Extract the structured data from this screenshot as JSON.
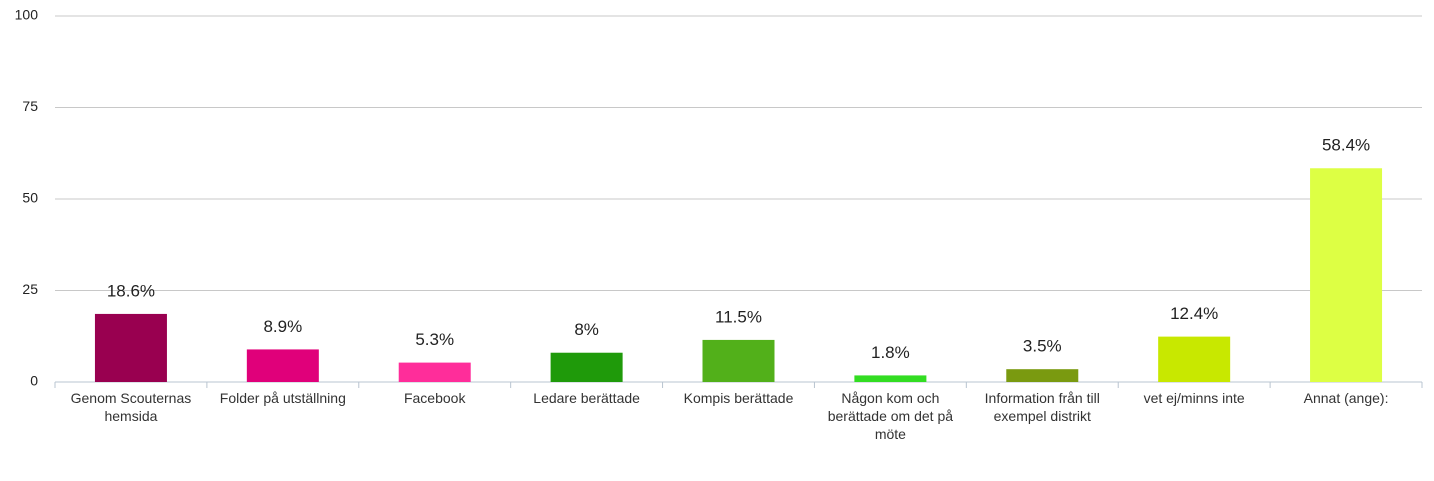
{
  "chart_data": {
    "type": "bar",
    "categories": [
      "Genom Scouternas hemsida",
      "Folder på utställning",
      "Facebook",
      "Ledare berättade",
      "Kompis berättade",
      "Någon kom och berättade om det på möte",
      "Information från till exempel distrikt",
      "vet ej/minns inte",
      "Annat (ange):"
    ],
    "values": [
      18.6,
      8.9,
      5.3,
      8,
      11.5,
      1.8,
      3.5,
      12.4,
      58.4
    ],
    "value_labels": [
      "18.6%",
      "8.9%",
      "5.3%",
      "8%",
      "11.5%",
      "1.8%",
      "3.5%",
      "12.4%",
      "58.4%"
    ],
    "colors": [
      "#990050",
      "#e0007a",
      "#ff2d9a",
      "#1f9a0a",
      "#52b01a",
      "#33dd22",
      "#7a9a10",
      "#c8e800",
      "#ddff44"
    ],
    "ylim": [
      0,
      100
    ],
    "yticks": [
      0,
      25,
      50,
      75,
      100
    ],
    "grid": true
  }
}
